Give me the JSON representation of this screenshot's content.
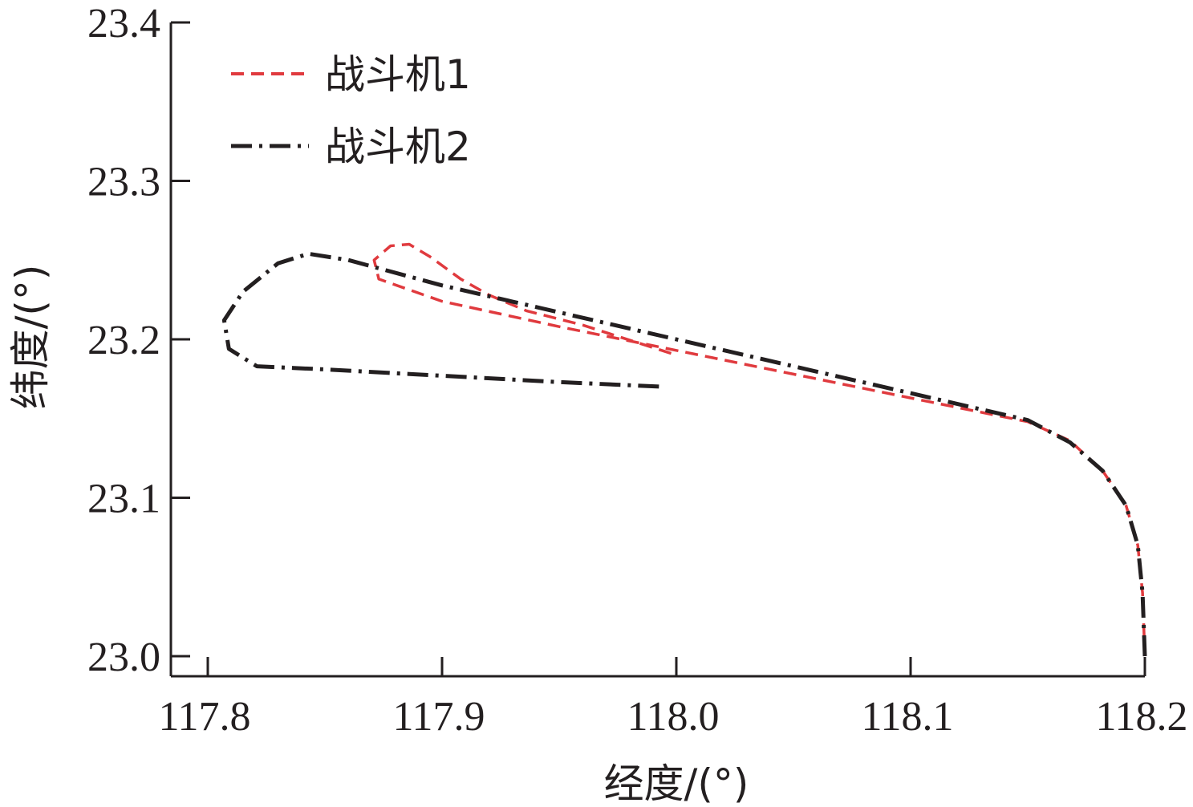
{
  "chart_data": {
    "type": "line",
    "xlabel": "经度/(°)",
    "ylabel": "纬度/(°)",
    "xlim": [
      117.8,
      118.2
    ],
    "ylim": [
      23.0,
      23.4
    ],
    "x_ticks": [
      "117.8",
      "117.9",
      "118.0",
      "118.1",
      "118.2"
    ],
    "y_ticks": [
      "23.0",
      "23.1",
      "23.2",
      "23.3",
      "23.4"
    ],
    "legend_position": "top-left",
    "grid": false,
    "series": [
      {
        "name": "战斗机1",
        "color": "#e03a3e",
        "style": "dashed",
        "points": [
          [
            118.2,
            23.0
          ],
          [
            118.199,
            23.04
          ],
          [
            118.197,
            23.07
          ],
          [
            118.192,
            23.095
          ],
          [
            118.182,
            23.117
          ],
          [
            118.168,
            23.136
          ],
          [
            118.15,
            23.148
          ],
          [
            118.1,
            23.163
          ],
          [
            118.05,
            23.178
          ],
          [
            118.0,
            23.193
          ],
          [
            117.95,
            23.208
          ],
          [
            117.9,
            23.224
          ],
          [
            117.873,
            23.238
          ],
          [
            117.871,
            23.25
          ],
          [
            117.878,
            23.259
          ],
          [
            117.886,
            23.26
          ],
          [
            117.895,
            23.252
          ],
          [
            117.908,
            23.238
          ],
          [
            117.92,
            23.228
          ],
          [
            117.936,
            23.218
          ],
          [
            117.96,
            23.209
          ],
          [
            117.998,
            23.191
          ]
        ]
      },
      {
        "name": "战斗机2",
        "color": "#231f20",
        "style": "dash-dot",
        "points": [
          [
            118.2,
            23.0
          ],
          [
            118.199,
            23.04
          ],
          [
            118.197,
            23.07
          ],
          [
            118.192,
            23.095
          ],
          [
            118.182,
            23.117
          ],
          [
            118.168,
            23.135
          ],
          [
            118.15,
            23.149
          ],
          [
            118.1,
            23.166
          ],
          [
            118.05,
            23.183
          ],
          [
            118.0,
            23.2
          ],
          [
            117.95,
            23.217
          ],
          [
            117.9,
            23.234
          ],
          [
            117.86,
            23.25
          ],
          [
            117.843,
            23.254
          ],
          [
            117.83,
            23.248
          ],
          [
            117.815,
            23.23
          ],
          [
            117.807,
            23.212
          ],
          [
            117.809,
            23.194
          ],
          [
            117.821,
            23.183
          ],
          [
            117.85,
            23.181
          ],
          [
            117.9,
            23.177
          ],
          [
            117.95,
            23.173
          ],
          [
            117.995,
            23.17
          ]
        ]
      }
    ]
  }
}
